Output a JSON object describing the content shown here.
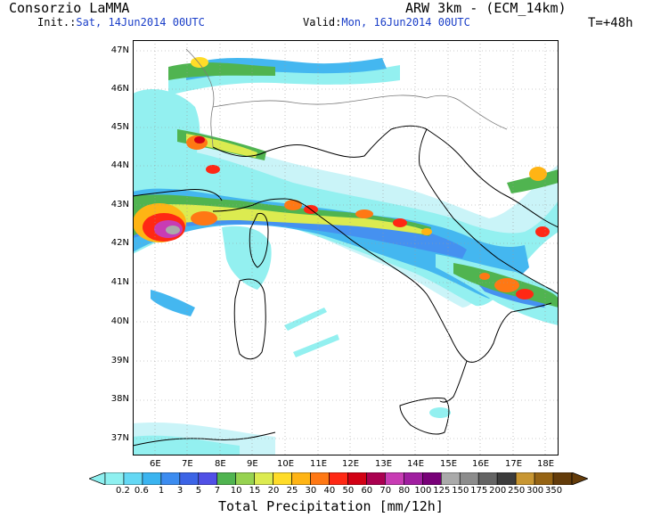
{
  "header": {
    "title_left": "Consorzio LaMMA",
    "title_right": "ARW 3km - (ECM_14km)",
    "init_label": "Init.:",
    "init_value": "Sat, 14Jun2014 00UTC",
    "valid_label": "Valid:",
    "valid_value": "Mon, 16Jun2014 00UTC",
    "lead_time": "T=+48h"
  },
  "map": {
    "lat_labels": [
      "47N",
      "46N",
      "45N",
      "44N",
      "43N",
      "42N",
      "41N",
      "40N",
      "39N",
      "38N",
      "37N"
    ],
    "lon_labels": [
      "6E",
      "7E",
      "8E",
      "9E",
      "10E",
      "11E",
      "12E",
      "13E",
      "14E",
      "15E",
      "16E",
      "17E",
      "18E"
    ],
    "land_color": "#ffffff",
    "sea_color": "#ffffff",
    "gridline_style": "dotted-grey"
  },
  "colorbar": {
    "title": "Total Precipitation [mm/12h]",
    "labels": [
      "0.2",
      "0.6",
      "1",
      "3",
      "5",
      "7",
      "10",
      "15",
      "20",
      "25",
      "30",
      "40",
      "50",
      "60",
      "70",
      "80",
      "100",
      "125",
      "150",
      "175",
      "200",
      "250",
      "300",
      "350"
    ],
    "colors": [
      "#8ef0f0",
      "#64d8f4",
      "#3ab4f0",
      "#3c8cf0",
      "#3c64e6",
      "#5050e6",
      "#50b450",
      "#96d250",
      "#dceb50",
      "#ffdc28",
      "#ffb414",
      "#ff7814",
      "#ff2814",
      "#d20014",
      "#aa0050",
      "#c83cb4",
      "#a01ea0",
      "#780078",
      "#aaaaaa",
      "#8c8c8c",
      "#646464",
      "#3c3c3c",
      "#c89632",
      "#966414",
      "#643c0a"
    ]
  }
}
